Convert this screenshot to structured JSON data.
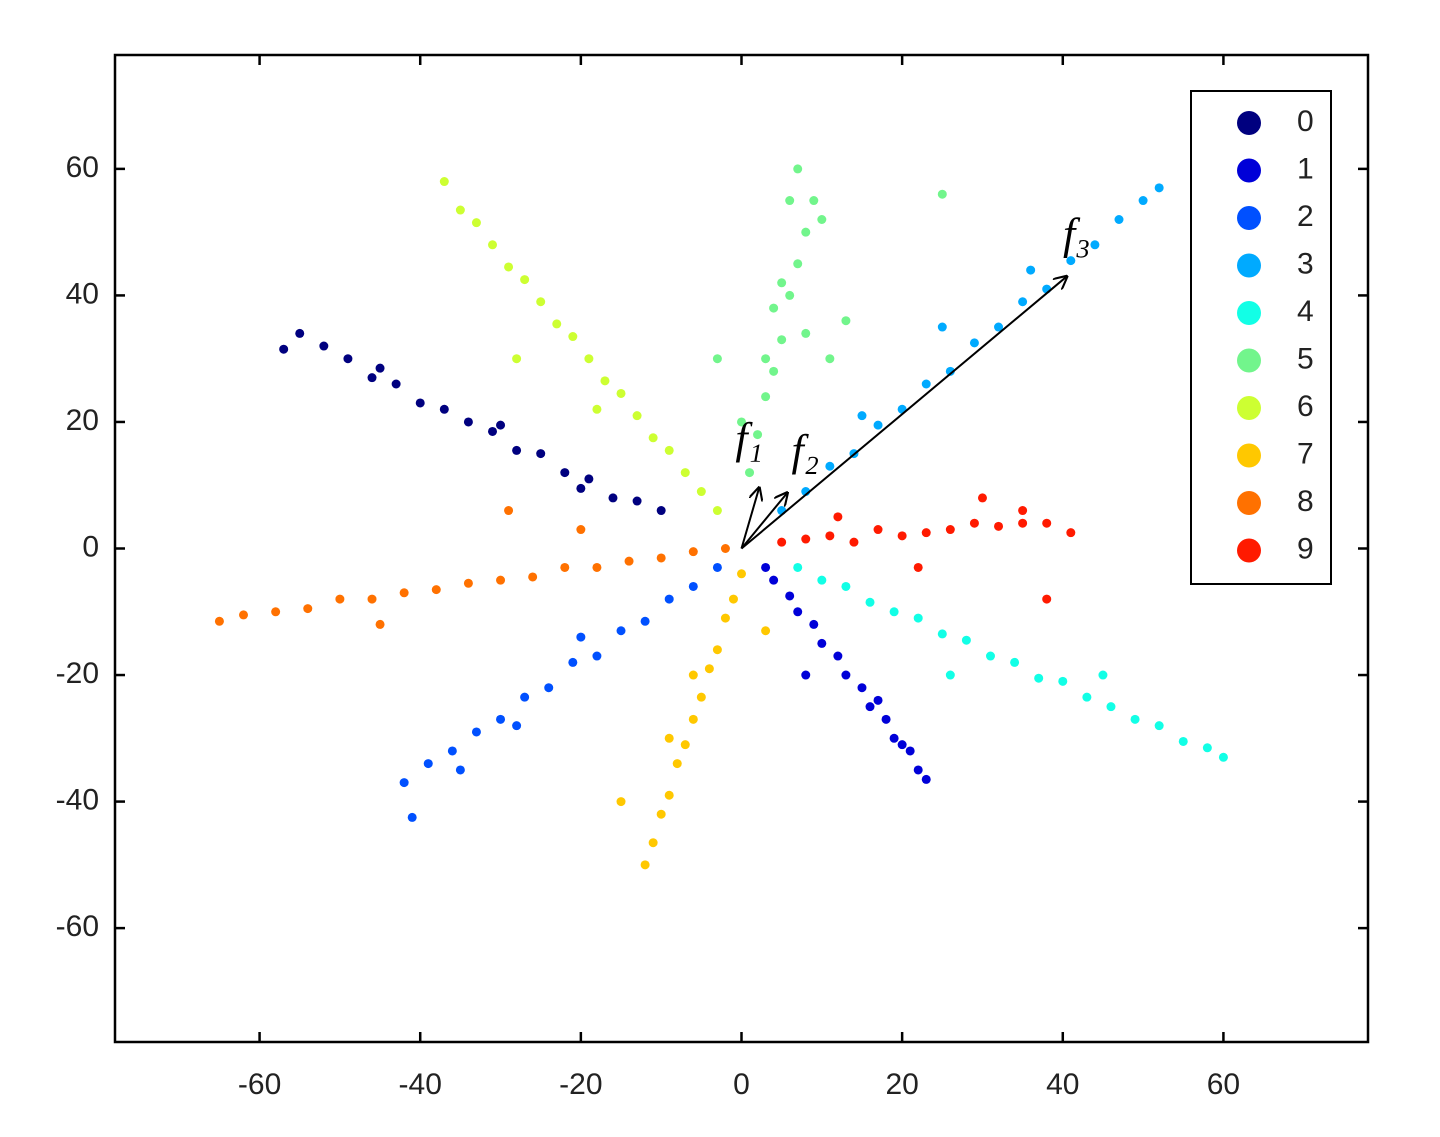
{
  "chart_data": {
    "type": "scatter",
    "xlim": [
      -78,
      78
    ],
    "ylim": [
      -78,
      78
    ],
    "xticks": [
      -60,
      -40,
      -20,
      0,
      20,
      40,
      60
    ],
    "yticks": [
      -60,
      -40,
      -20,
      0,
      20,
      40,
      60
    ],
    "grid": false,
    "legend": "upper right",
    "series": [
      {
        "name": "0",
        "color": "#00007f",
        "x": [
          -10,
          -13,
          -16,
          -19,
          -22,
          -25,
          -28,
          -31,
          -34,
          -37,
          -40,
          -43,
          -46,
          -49,
          -52,
          -55,
          -57,
          -30,
          -20,
          -45
        ],
        "y": [
          6,
          7.5,
          8,
          11,
          12,
          15,
          15.5,
          18.5,
          20,
          22,
          23,
          26,
          27,
          30,
          32,
          34,
          31.5,
          19.5,
          9.5,
          28.5
        ]
      },
      {
        "name": "1",
        "color": "#0000d8",
        "x": [
          3,
          4,
          6,
          7,
          9,
          10,
          12,
          13,
          15,
          16,
          18,
          19,
          21,
          22,
          23,
          8,
          17,
          20
        ],
        "y": [
          -3,
          -5,
          -7.5,
          -10,
          -12,
          -15,
          -17,
          -20,
          -22,
          -25,
          -27,
          -30,
          -32,
          -35,
          -36.5,
          -20,
          -24,
          -31
        ]
      },
      {
        "name": "2",
        "color": "#0050ff",
        "x": [
          -3,
          -6,
          -9,
          -12,
          -15,
          -18,
          -21,
          -24,
          -27,
          -30,
          -33,
          -36,
          -39,
          -42,
          -41,
          -20,
          -28,
          -35
        ],
        "y": [
          -3,
          -6,
          -8,
          -11.5,
          -13,
          -17,
          -18,
          -22,
          -23.5,
          -27,
          -29,
          -32,
          -34,
          -37,
          -42.5,
          -14,
          -28,
          -35
        ]
      },
      {
        "name": "3",
        "color": "#00aaff",
        "x": [
          5,
          8,
          11,
          14,
          17,
          20,
          23,
          26,
          29,
          32,
          35,
          38,
          41,
          44,
          47,
          50,
          52,
          25,
          36,
          15
        ],
        "y": [
          6,
          9,
          13,
          15,
          19.5,
          22,
          26,
          28,
          32.5,
          35,
          39,
          41,
          45.5,
          48,
          52,
          55,
          57,
          35,
          44,
          21
        ]
      },
      {
        "name": "4",
        "color": "#12ffe6",
        "x": [
          7,
          10,
          13,
          16,
          19,
          22,
          25,
          28,
          31,
          34,
          37,
          40,
          43,
          46,
          49,
          52,
          55,
          58,
          60,
          26,
          45
        ],
        "y": [
          -3,
          -5,
          -6,
          -8.5,
          -10,
          -11,
          -13.5,
          -14.5,
          -17,
          -18,
          -20.5,
          -21,
          -23.5,
          -25,
          -27,
          -28,
          -30.5,
          -31.5,
          -33,
          -20,
          -20
        ]
      },
      {
        "name": "5",
        "color": "#72f58c",
        "x": [
          1,
          2,
          3,
          4,
          5,
          6,
          7,
          8,
          9,
          10,
          4,
          6,
          8,
          3,
          5,
          7,
          -3,
          13,
          25,
          11,
          0
        ],
        "y": [
          12,
          18,
          24,
          28,
          33,
          40,
          45,
          50,
          55,
          52,
          38,
          55,
          34,
          30,
          42,
          60,
          30,
          36,
          56,
          30,
          20
        ]
      },
      {
        "name": "6",
        "color": "#cdff32",
        "x": [
          -5,
          -7,
          -9,
          -11,
          -13,
          -15,
          -17,
          -19,
          -21,
          -23,
          -25,
          -27,
          -29,
          -31,
          -33,
          -35,
          -37,
          -28,
          -18,
          -3
        ],
        "y": [
          9,
          12,
          15.5,
          17.5,
          21,
          24.5,
          26.5,
          30,
          33.5,
          35.5,
          39,
          42.5,
          44.5,
          48,
          51.5,
          53.5,
          58,
          30,
          22,
          6
        ]
      },
      {
        "name": "7",
        "color": "#ffc800",
        "x": [
          0,
          -1,
          -2,
          -3,
          -4,
          -5,
          -6,
          -7,
          -8,
          -9,
          -10,
          -11,
          -12,
          -15,
          3,
          -6,
          -9
        ],
        "y": [
          -4,
          -8,
          -11,
          -16,
          -19,
          -23.5,
          -27,
          -31,
          -34,
          -39,
          -42,
          -46.5,
          -50,
          -40,
          -13,
          -20,
          -30
        ]
      },
      {
        "name": "8",
        "color": "#ff7100",
        "x": [
          -2,
          -6,
          -10,
          -14,
          -18,
          -22,
          -26,
          -30,
          -34,
          -38,
          -42,
          -46,
          -50,
          -54,
          -58,
          -62,
          -65,
          -29,
          -20,
          -45
        ],
        "y": [
          0,
          -0.5,
          -1.5,
          -2,
          -3,
          -3,
          -4.5,
          -5,
          -5.5,
          -6.5,
          -7,
          -8,
          -8,
          -9.5,
          -10,
          -10.5,
          -11.5,
          6,
          3,
          -12
        ]
      },
      {
        "name": "9",
        "color": "#ff1a00",
        "x": [
          5,
          8,
          11,
          14,
          17,
          20,
          23,
          26,
          29,
          32,
          35,
          38,
          41,
          30,
          35,
          22,
          38,
          12
        ],
        "y": [
          1,
          1.5,
          2,
          1,
          3,
          2,
          2.5,
          3,
          4,
          3.5,
          4,
          4,
          2.5,
          8,
          6,
          -3,
          -8,
          5
        ]
      }
    ],
    "annotations": [
      {
        "text": "f₁",
        "x": 2.2,
        "y": 9.6
      },
      {
        "text": "f₂",
        "x": 5.7,
        "y": 8.8
      },
      {
        "text": "f₃",
        "x": 40.5,
        "y": 43
      }
    ]
  }
}
